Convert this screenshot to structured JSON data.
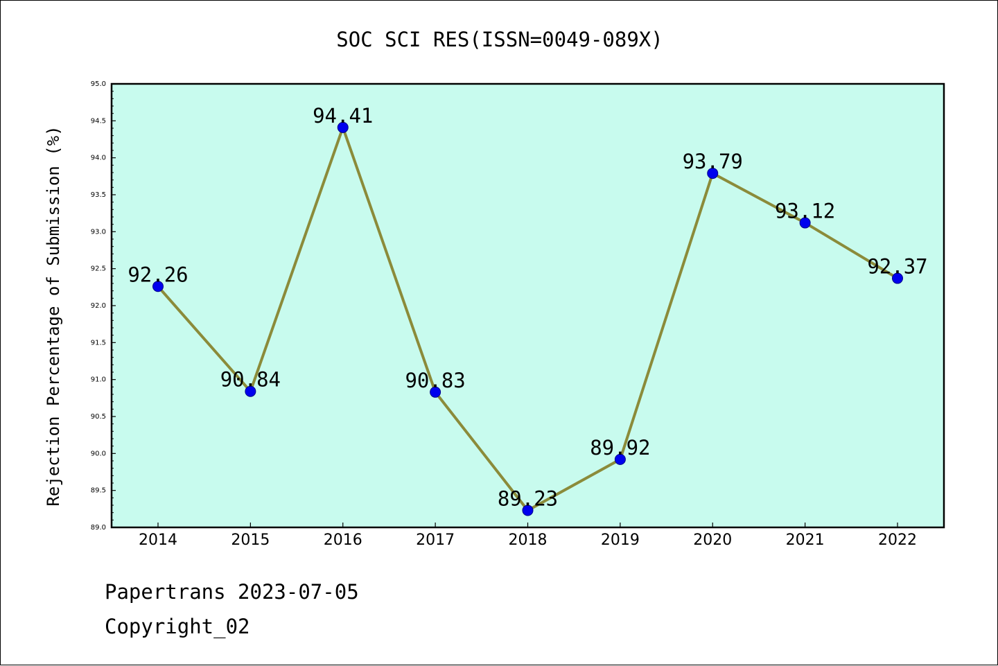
{
  "chart_data": {
    "type": "line",
    "title": "SOC SCI RES(ISSN=0049-089X)",
    "xlabel": "",
    "ylabel": "Rejection Percentage of Submission (%)",
    "categories": [
      "2014",
      "2015",
      "2016",
      "2017",
      "2018",
      "2019",
      "2020",
      "2021",
      "2022"
    ],
    "series": [
      {
        "values": [
          92.26,
          90.84,
          94.41,
          90.83,
          89.23,
          89.92,
          93.79,
          93.12,
          92.37
        ],
        "data_labels": [
          "92.26",
          "90.84",
          "94.41",
          "90.83",
          "89.23",
          "89.92",
          "93.79",
          "93.12",
          "92.37"
        ],
        "line_color": "#8b8b3a",
        "marker_color": "#0000ee"
      }
    ],
    "ylim": [
      89.0,
      95.0
    ],
    "yticks": [
      "89.0",
      "89.5",
      "90.0",
      "90.5",
      "91.0",
      "91.5",
      "92.0",
      "92.5",
      "93.0",
      "93.5",
      "94.0",
      "94.5",
      "95.0"
    ],
    "plot_background": "#c8fbee",
    "grid": false,
    "legend": "none"
  },
  "footer": {
    "line1": "Papertrans 2023-07-05",
    "line2": "Copyright_02"
  }
}
